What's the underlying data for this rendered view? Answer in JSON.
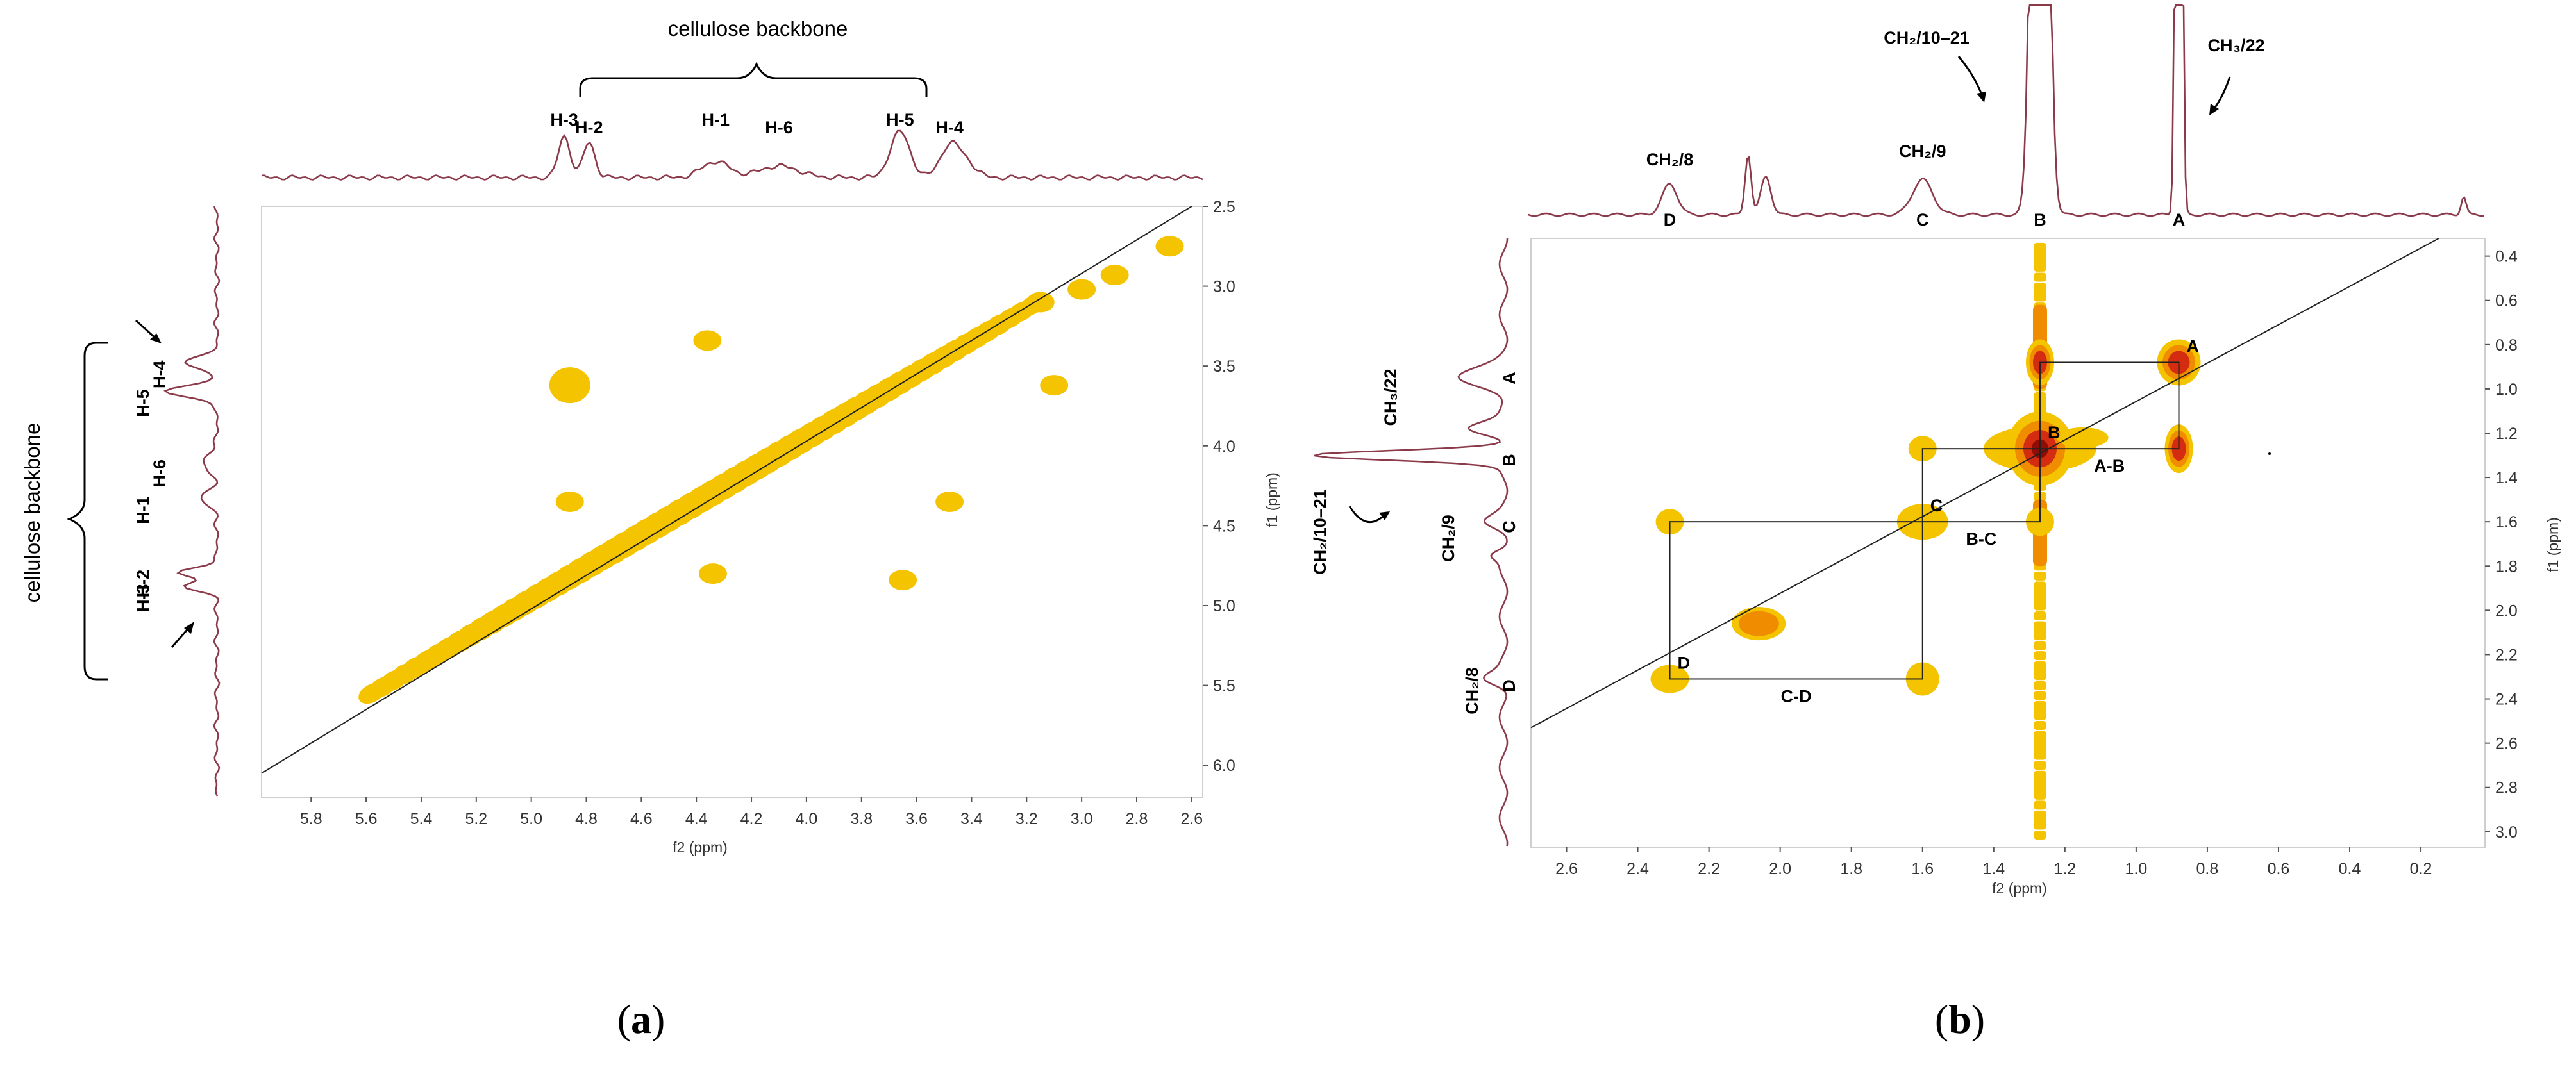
{
  "chart_data": [
    {
      "panel": "a",
      "type": "scatter",
      "subtype": "2D NMR COSY contour map",
      "caption_letter": "a",
      "xlabel": "f2 (ppm)",
      "ylabel": "f1 (ppm)",
      "xlim": [
        5.98,
        2.56
      ],
      "ylim": [
        2.5,
        6.2
      ],
      "x_ticks": [
        "5.8",
        "5.6",
        "5.4",
        "5.2",
        "5.0",
        "4.8",
        "4.6",
        "4.4",
        "4.2",
        "4.0",
        "3.8",
        "3.6",
        "3.4",
        "3.2",
        "3.0",
        "2.8",
        "2.6"
      ],
      "y_ticks": [
        "2.5",
        "3.0",
        "3.5",
        "4.0",
        "4.5",
        "5.0",
        "5.5",
        "6.0"
      ],
      "top_spectrum_group": "cellulose backbone",
      "top_spectrum_labels": [
        {
          "text": "H-3",
          "ppm": 4.88
        },
        {
          "text": "H-2",
          "ppm": 4.79
        },
        {
          "text": "H-1",
          "ppm": 4.33
        },
        {
          "text": "H-6",
          "ppm": 4.1
        },
        {
          "text": "H-5",
          "ppm": 3.66
        },
        {
          "text": "H-4",
          "ppm": 3.48
        }
      ],
      "side_spectrum_group": "cellulose backbone",
      "side_spectrum_labels": [
        {
          "text": "H-4",
          "ppm": 3.48
        },
        {
          "text": "H-5",
          "ppm": 3.66
        },
        {
          "text": "H-6",
          "ppm": 4.1
        },
        {
          "text": "H-1",
          "ppm": 4.33
        },
        {
          "text": "H-2",
          "ppm": 4.79
        },
        {
          "text": "H-3",
          "ppm": 4.88
        }
      ],
      "diagonal": {
        "from": [
          5.58,
          5.55
        ],
        "to": [
          3.18,
          3.12
        ]
      },
      "cross_peaks": [
        {
          "x": 4.86,
          "y": 3.62
        },
        {
          "x": 4.36,
          "y": 3.34
        },
        {
          "x": 4.86,
          "y": 4.35
        },
        {
          "x": 4.34,
          "y": 4.8
        },
        {
          "x": 3.65,
          "y": 4.84
        },
        {
          "x": 3.48,
          "y": 4.35
        },
        {
          "x": 3.1,
          "y": 3.62
        },
        {
          "x": 3.0,
          "y": 3.02
        },
        {
          "x": 2.88,
          "y": 2.93
        },
        {
          "x": 2.68,
          "y": 2.75
        },
        {
          "x": 3.15,
          "y": 3.1
        }
      ]
    },
    {
      "panel": "b",
      "type": "scatter",
      "subtype": "2D NMR COSY contour map",
      "caption_letter": "b",
      "xlabel": "f2 (ppm)",
      "ylabel": "f1 (ppm)",
      "xlim": [
        2.7,
        0.02
      ],
      "ylim": [
        0.32,
        3.07
      ],
      "x_ticks": [
        "2.6",
        "2.4",
        "2.2",
        "2.0",
        "1.8",
        "1.6",
        "1.4",
        "1.2",
        "1.0",
        "0.8",
        "0.6",
        "0.4",
        "0.2"
      ],
      "y_ticks": [
        "0.4",
        "0.6",
        "0.8",
        "1.0",
        "1.2",
        "1.4",
        "1.6",
        "1.8",
        "2.0",
        "2.2",
        "2.4",
        "2.6",
        "2.8",
        "3.0"
      ],
      "top_spectrum_labels": [
        {
          "text": "CH₂/8",
          "ppm": 2.31
        },
        {
          "text": "CH₂/9",
          "ppm": 1.6
        },
        {
          "text": "CH₂/10–21",
          "ppm": 1.27
        },
        {
          "text": "CH₃/22",
          "ppm": 0.88
        }
      ],
      "top_peak_letters": [
        {
          "text": "D",
          "ppm": 2.31
        },
        {
          "text": "C",
          "ppm": 1.6
        },
        {
          "text": "B",
          "ppm": 1.27
        },
        {
          "text": "A",
          "ppm": 0.88
        }
      ],
      "side_spectrum_labels": [
        {
          "text": "CH₃/22",
          "ppm": 0.88
        },
        {
          "text": "CH₂/10–21",
          "ppm": 1.27
        },
        {
          "text": "CH₂/9",
          "ppm": 1.6
        },
        {
          "text": "CH₂/8",
          "ppm": 2.31
        }
      ],
      "side_peak_letters": [
        {
          "text": "A",
          "ppm": 0.97
        },
        {
          "text": "B",
          "ppm": 1.3
        },
        {
          "text": "C",
          "ppm": 1.6
        },
        {
          "text": "D",
          "ppm": 2.27
        }
      ],
      "diagonal_peaks": [
        {
          "text": "A",
          "ppm": 0.88
        },
        {
          "text": "B",
          "ppm": 1.27
        },
        {
          "text": "C",
          "ppm": 1.6
        },
        {
          "text": "D",
          "ppm": 2.31
        }
      ],
      "correlation_boxes": [
        {
          "text": "A-B",
          "x1": 1.27,
          "x2": 0.88,
          "y1": 0.88,
          "y2": 1.27
        },
        {
          "text": "B-C",
          "x1": 1.6,
          "x2": 1.27,
          "y1": 1.27,
          "y2": 1.6
        },
        {
          "text": "C-D",
          "x1": 2.31,
          "x2": 1.6,
          "y1": 1.6,
          "y2": 2.31
        }
      ],
      "cross_peaks": [
        {
          "x": 1.27,
          "y": 0.88
        },
        {
          "x": 0.88,
          "y": 1.27
        },
        {
          "x": 1.6,
          "y": 1.27
        },
        {
          "x": 1.27,
          "y": 1.6
        },
        {
          "x": 2.31,
          "y": 1.6
        },
        {
          "x": 1.6,
          "y": 2.31
        },
        {
          "x": 2.06,
          "y": 2.06
        },
        {
          "x": 1.27,
          "y": 0.35
        },
        {
          "x": 1.27,
          "y": 3.05
        }
      ]
    }
  ],
  "colors": {
    "spectrum": "#8b3a4a",
    "contour_yellow": "#f5c400",
    "contour_orange": "#f08c00",
    "contour_red": "#d32c10",
    "contour_dark": "#8e0d05"
  }
}
